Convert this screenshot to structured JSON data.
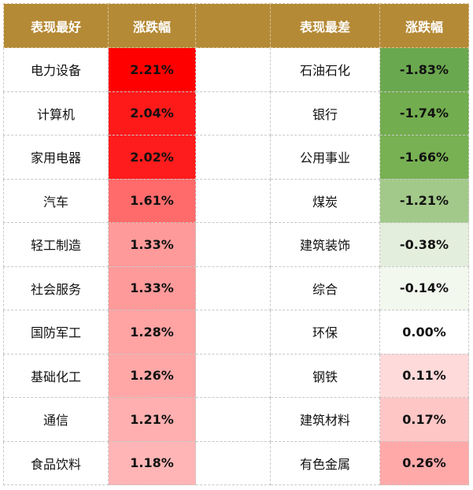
{
  "header": {
    "best": "表现最好",
    "best_change": "涨跌幅",
    "worst": "表现最差",
    "worst_change": "涨跌幅"
  },
  "rows": [
    {
      "best_name": "电力设备",
      "best_value": "2.21%",
      "best_color": "#ff0000",
      "worst_name": "石油石化",
      "worst_value": "-1.83%",
      "worst_color": "#6aa84f"
    },
    {
      "best_name": "计算机",
      "best_value": "2.04%",
      "best_color": "#ff1a1a",
      "worst_name": "银行",
      "worst_value": "-1.74%",
      "worst_color": "#72ad4f"
    },
    {
      "best_name": "家用电器",
      "best_value": "2.02%",
      "best_color": "#ff1c1c",
      "worst_name": "公用事业",
      "worst_value": "-1.66%",
      "worst_color": "#78b153"
    },
    {
      "best_name": "汽车",
      "best_value": "1.61%",
      "best_color": "#ff6b6b",
      "worst_name": "煤炭",
      "worst_value": "-1.21%",
      "worst_color": "#a2c98a"
    },
    {
      "best_name": "轻工制造",
      "best_value": "1.33%",
      "best_color": "#ff9a9a",
      "worst_name": "建筑装饰",
      "worst_value": "-0.38%",
      "worst_color": "#e4eedc"
    },
    {
      "best_name": "社会服务",
      "best_value": "1.33%",
      "best_color": "#ff9a9a",
      "worst_name": "综合",
      "worst_value": "-0.14%",
      "worst_color": "#f3f8ef"
    },
    {
      "best_name": "国防军工",
      "best_value": "1.28%",
      "best_color": "#ffa3a3",
      "worst_name": "环保",
      "worst_value": "0.00%",
      "worst_color": "#ffffff"
    },
    {
      "best_name": "基础化工",
      "best_value": "1.26%",
      "best_color": "#ffa7a7",
      "worst_name": "钢铁",
      "worst_value": "0.11%",
      "worst_color": "#ffdada"
    },
    {
      "best_name": "通信",
      "best_value": "1.21%",
      "best_color": "#ffafaf",
      "worst_name": "建筑材料",
      "worst_value": "0.17%",
      "worst_color": "#ffc6c6"
    },
    {
      "best_name": "食品饮料",
      "best_value": "1.18%",
      "best_color": "#ffb5b5",
      "worst_name": "有色金属",
      "worst_value": "0.26%",
      "worst_color": "#ffa9a9"
    }
  ]
}
